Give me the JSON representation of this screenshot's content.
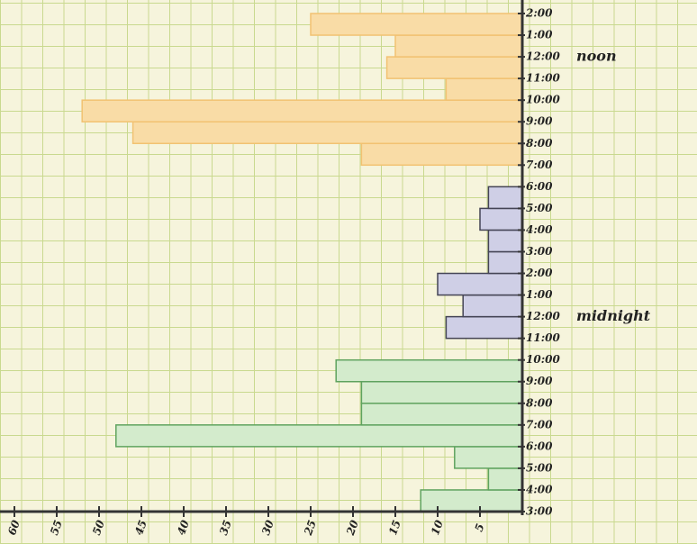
{
  "chart_data": {
    "type": "histogram",
    "orientation": "horizontal",
    "x_reversed": true,
    "bins": [
      "3:00",
      "4:00",
      "5:00",
      "6:00",
      "7:00",
      "8:00",
      "9:00",
      "10:00",
      "11:00",
      "12:00",
      "1:00",
      "2:00",
      "3:00",
      "4:00",
      "5:00",
      "6:00",
      "7:00",
      "8:00",
      "9:00",
      "10:00",
      "11:00",
      "12:00",
      "1:00",
      "2:00"
    ],
    "series": [
      {
        "color": "#d3ebcc",
        "stroke": "#5fa35f",
        "values": [
          12,
          4,
          8,
          48,
          19,
          19,
          22,
          null,
          null,
          null,
          null,
          null,
          null,
          null,
          null,
          null,
          null,
          null,
          null,
          null,
          null,
          null,
          null
        ]
      },
      {
        "color": "#cfcfe6",
        "stroke": "#444455",
        "values": [
          null,
          null,
          null,
          null,
          null,
          null,
          null,
          null,
          9,
          7,
          10,
          4,
          4,
          5,
          4,
          null,
          null,
          null,
          null,
          null,
          null,
          null,
          null
        ]
      },
      {
        "color": "#f9dca6",
        "stroke": "#f2c272",
        "values": [
          null,
          null,
          null,
          null,
          null,
          null,
          null,
          null,
          null,
          null,
          null,
          null,
          null,
          null,
          null,
          null,
          19,
          46,
          52,
          9,
          16,
          15,
          25
        ]
      }
    ],
    "annotations": [
      {
        "text": "midnight",
        "bin": 9
      },
      {
        "text": "noon",
        "bin": 21
      }
    ],
    "xlim": [
      0,
      60
    ],
    "xticks": [
      5,
      10,
      15,
      20,
      25,
      30,
      35,
      40,
      45,
      50,
      55,
      60
    ]
  }
}
